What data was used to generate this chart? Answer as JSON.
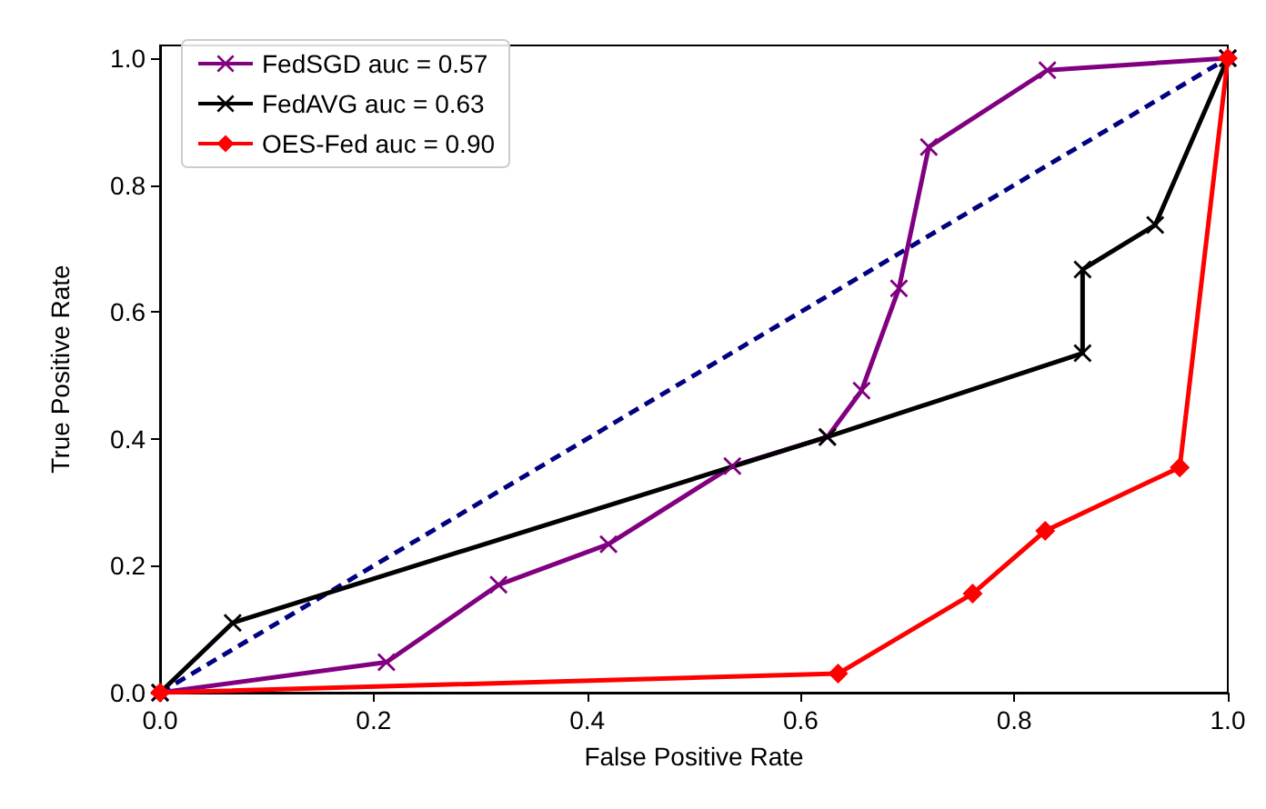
{
  "chart_data": {
    "type": "line",
    "xlabel": "False Positive Rate",
    "ylabel": "True Positive Rate",
    "xlim": [
      0,
      1
    ],
    "ylim": [
      0,
      1.02
    ],
    "xticks": [
      {
        "value": 0,
        "label": "0.0"
      },
      {
        "value": 0.2,
        "label": "0.2"
      },
      {
        "value": 0.4,
        "label": "0.4"
      },
      {
        "value": 0.6,
        "label": "0.6"
      },
      {
        "value": 0.8,
        "label": "0.8"
      },
      {
        "value": 1,
        "label": "1.0"
      }
    ],
    "yticks": [
      {
        "value": 0,
        "label": "0.0"
      },
      {
        "value": 0.2,
        "label": "0.2"
      },
      {
        "value": 0.4,
        "label": "0.4"
      },
      {
        "value": 0.6,
        "label": "0.6"
      },
      {
        "value": 0.8,
        "label": "0.8"
      },
      {
        "value": 1,
        "label": "1.0"
      }
    ],
    "grid": false,
    "legend": "top left",
    "series": [
      {
        "name": "FedSGD auc = 0.57",
        "color": "#800080",
        "marker": "cross",
        "x": [
          0,
          0.212,
          0.317,
          0.42,
          0.536,
          0.625,
          0.657,
          0.692,
          0.72,
          0.831,
          1
        ],
        "values": [
          0,
          0.048,
          0.17,
          0.234,
          0.357,
          0.403,
          0.476,
          0.637,
          0.86,
          0.981,
          1
        ]
      },
      {
        "name": "FedAVG auc = 0.63",
        "color": "#000000",
        "marker": "cross",
        "x": [
          0,
          0.068,
          0.625,
          0.864,
          0.864,
          0.932,
          1
        ],
        "values": [
          0,
          0.11,
          0.403,
          0.535,
          0.667,
          0.737,
          1
        ]
      },
      {
        "name": "OES-Fed auc = 0.90",
        "color": "#ff0000",
        "marker": "diamond",
        "x": [
          0,
          0.635,
          0.761,
          0.829,
          0.955,
          1
        ],
        "values": [
          0,
          0.03,
          0.156,
          0.255,
          0.355,
          1
        ]
      },
      {
        "color": "#000080",
        "marker": "none",
        "line_style": "dashed",
        "x": [
          0,
          1
        ],
        "values": [
          0,
          1
        ]
      }
    ]
  }
}
